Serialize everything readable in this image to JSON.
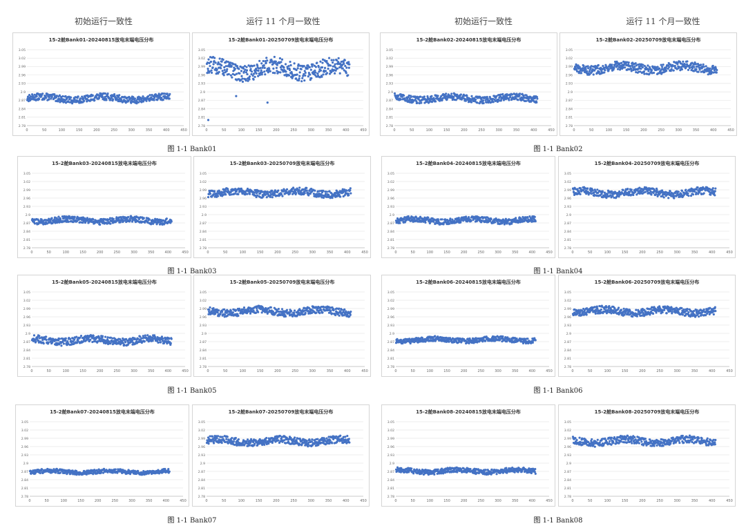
{
  "headers": [
    "初始运行一致性",
    "运行 11 个月一致性",
    "初始运行一致性",
    "运行 11 个月一致性"
  ],
  "captions": [
    "图  1-1 Bank01",
    "图  1-1 Bank02",
    "图  1-1 Bank03",
    "图  1-1 Bank04",
    "图  1-1 Bank05",
    "图  1-1 Bank06",
    "图  1-1 Bank07",
    "图  1-1 Bank08"
  ],
  "colors": {
    "marker": "#4472c4",
    "grid": "#e6e6e6",
    "axis": "#bfbfbf"
  },
  "chart_data": [
    {
      "id": "b01-init",
      "type": "scatter",
      "title": "15-2舱Bank01-20240815放电末端电压分布",
      "xlim": [
        0,
        450
      ],
      "xticks": [
        0,
        50,
        100,
        150,
        200,
        250,
        300,
        350,
        400,
        450
      ],
      "ylim": [
        2.78,
        3.05
      ],
      "yticks": [
        "3.05",
        "3.02",
        "2.99",
        "2.96",
        "2.93",
        "2.9",
        "2.87",
        "2.84",
        "2.81",
        "2.78"
      ],
      "grid": true,
      "n": 410,
      "y_range": [
        2.855,
        2.895
      ]
    },
    {
      "id": "b01-11m",
      "type": "scatter",
      "title": "15-2舱Bank01-20250709放电末端电压分布",
      "xlim": [
        0,
        450
      ],
      "xticks": [
        0,
        50,
        100,
        150,
        200,
        250,
        300,
        350,
        400,
        450
      ],
      "ylim": [
        2.78,
        3.05
      ],
      "yticks": [
        "3.05",
        "3.02",
        "2.99",
        "2.96",
        "2.93",
        "2.9",
        "2.87",
        "2.84",
        "2.81",
        "2.78"
      ],
      "grid": true,
      "n": 410,
      "y_range": [
        2.925,
        3.025
      ],
      "outliers": [
        [
          5,
          2.8
        ],
        [
          85,
          2.885
        ],
        [
          175,
          2.862
        ]
      ]
    },
    {
      "id": "b02-init",
      "type": "scatter",
      "title": "15-2舱Bank02-20240815放电末端电压分布",
      "xlim": [
        0,
        450
      ],
      "xticks": [
        0,
        50,
        100,
        150,
        200,
        250,
        300,
        350,
        400,
        450
      ],
      "ylim": [
        2.78,
        3.05
      ],
      "yticks": [
        "3.05",
        "3.02",
        "2.99",
        "2.96",
        "2.93",
        "2.9",
        "2.87",
        "2.84",
        "2.81",
        "2.78"
      ],
      "grid": true,
      "n": 410,
      "y_range": [
        2.855,
        2.895
      ]
    },
    {
      "id": "b02-11m",
      "type": "scatter",
      "title": "15-2舱Bank02-20250709放电末端电压分布",
      "xlim": [
        0,
        450
      ],
      "xticks": [
        0,
        50,
        100,
        150,
        200,
        250,
        300,
        350,
        400,
        450
      ],
      "ylim": [
        2.78,
        3.05
      ],
      "yticks": [
        "3.05",
        "3.02",
        "2.99",
        "2.96",
        "2.93",
        "2.9",
        "2.87",
        "2.84",
        "2.81",
        "2.78"
      ],
      "grid": true,
      "n": 410,
      "y_range": [
        2.955,
        3.01
      ]
    },
    {
      "id": "b03-init",
      "type": "scatter",
      "title": "15-2舱Bank03-20240815放电末端电压分布",
      "xlim": [
        0,
        450
      ],
      "xticks": [
        0,
        50,
        100,
        150,
        200,
        250,
        300,
        350,
        400,
        450
      ],
      "ylim": [
        2.78,
        3.05
      ],
      "yticks": [
        "3.05",
        "3.02",
        "2.99",
        "2.96",
        "2.93",
        "2.9",
        "2.87",
        "2.84",
        "2.81",
        "2.78"
      ],
      "grid": true,
      "n": 410,
      "y_range": [
        2.86,
        2.895
      ]
    },
    {
      "id": "b03-11m",
      "type": "scatter",
      "title": "15-2舱Bank03-20250709放电末端电压分布",
      "xlim": [
        0,
        450
      ],
      "xticks": [
        0,
        50,
        100,
        150,
        200,
        250,
        300,
        350,
        400,
        450
      ],
      "ylim": [
        2.78,
        3.05
      ],
      "yticks": [
        "3.05",
        "3.02",
        "2.99",
        "2.96",
        "2.93",
        "2.9",
        "2.87",
        "2.84",
        "2.81",
        "2.78"
      ],
      "grid": true,
      "n": 410,
      "y_range": [
        2.955,
        3.0
      ]
    },
    {
      "id": "b04-init",
      "type": "scatter",
      "title": "15-2舱Bank04-20240815放电末端电压分布",
      "xlim": [
        0,
        450
      ],
      "xticks": [
        0,
        50,
        100,
        150,
        200,
        250,
        300,
        350,
        400,
        450
      ],
      "ylim": [
        2.78,
        3.05
      ],
      "yticks": [
        "3.05",
        "3.02",
        "2.99",
        "2.96",
        "2.93",
        "2.9",
        "2.87",
        "2.84",
        "2.81",
        "2.78"
      ],
      "grid": true,
      "n": 410,
      "y_range": [
        2.86,
        2.895
      ]
    },
    {
      "id": "b04-11m",
      "type": "scatter",
      "title": "15-2舱Bank04-20250709放电末端电压分布",
      "xlim": [
        0,
        450
      ],
      "xticks": [
        0,
        50,
        100,
        150,
        200,
        250,
        300,
        350,
        400,
        450
      ],
      "ylim": [
        2.78,
        3.05
      ],
      "yticks": [
        "3.05",
        "3.02",
        "2.99",
        "2.96",
        "2.93",
        "2.9",
        "2.87",
        "2.84",
        "2.81",
        "2.78"
      ],
      "grid": true,
      "n": 410,
      "y_range": [
        2.955,
        3.0
      ]
    },
    {
      "id": "b05-init",
      "type": "scatter",
      "title": "15-2舱Bank05-20240815放电末端电压分布",
      "xlim": [
        0,
        450
      ],
      "xticks": [
        0,
        50,
        100,
        150,
        200,
        250,
        300,
        350,
        400,
        450
      ],
      "ylim": [
        2.78,
        3.05
      ],
      "yticks": [
        "3.05",
        "3.02",
        "2.99",
        "2.96",
        "2.93",
        "2.9",
        "2.87",
        "2.84",
        "2.81",
        "2.78"
      ],
      "grid": true,
      "n": 410,
      "y_range": [
        2.85,
        2.895
      ]
    },
    {
      "id": "b05-11m",
      "type": "scatter",
      "title": "15-2舱Bank05-20250709放电末端电压分布",
      "xlim": [
        0,
        450
      ],
      "xticks": [
        0,
        50,
        100,
        150,
        200,
        250,
        300,
        350,
        400,
        450
      ],
      "ylim": [
        2.78,
        3.05
      ],
      "yticks": [
        "3.05",
        "3.02",
        "2.99",
        "2.96",
        "2.93",
        "2.9",
        "2.87",
        "2.84",
        "2.81",
        "2.78"
      ],
      "grid": true,
      "n": 410,
      "y_range": [
        2.955,
        3.0
      ]
    },
    {
      "id": "b06-init",
      "type": "scatter",
      "title": "15-2舱Bank06-20240815放电末端电压分布",
      "xlim": [
        0,
        450
      ],
      "xticks": [
        0,
        50,
        100,
        150,
        200,
        250,
        300,
        350,
        400,
        450
      ],
      "ylim": [
        2.78,
        3.05
      ],
      "yticks": [
        "3.05",
        "3.02",
        "2.99",
        "2.96",
        "2.93",
        "2.9",
        "2.87",
        "2.84",
        "2.81",
        "2.78"
      ],
      "grid": true,
      "n": 410,
      "y_range": [
        2.86,
        2.89
      ]
    },
    {
      "id": "b06-11m",
      "type": "scatter",
      "title": "15-2舱Bank06-20250709放电末端电压分布",
      "xlim": [
        0,
        450
      ],
      "xticks": [
        0,
        50,
        100,
        150,
        200,
        250,
        300,
        350,
        400,
        450
      ],
      "ylim": [
        2.78,
        3.05
      ],
      "yticks": [
        "3.05",
        "3.02",
        "2.99",
        "2.96",
        "2.93",
        "2.9",
        "2.87",
        "2.84",
        "2.81",
        "2.78"
      ],
      "grid": true,
      "n": 410,
      "y_range": [
        2.955,
        3.0
      ]
    },
    {
      "id": "b07-init",
      "type": "scatter",
      "title": "15-2舱Bank07-20240815放电末端电压分布",
      "xlim": [
        0,
        450
      ],
      "xticks": [
        0,
        50,
        100,
        150,
        200,
        250,
        300,
        350,
        400,
        450
      ],
      "ylim": [
        2.78,
        3.05
      ],
      "yticks": [
        "3.05",
        "3.02",
        "2.99",
        "2.96",
        "2.93",
        "2.9",
        "2.87",
        "2.84",
        "2.81",
        "2.78"
      ],
      "grid": true,
      "n": 410,
      "y_range": [
        2.855,
        2.88
      ]
    },
    {
      "id": "b07-11m",
      "type": "scatter",
      "title": "15-2舱Bank07-20250709放电末端电压分布",
      "xlim": [
        0,
        450
      ],
      "xticks": [
        0,
        50,
        100,
        150,
        200,
        250,
        300,
        350,
        400,
        450
      ],
      "ylim": [
        2.78,
        3.05
      ],
      "yticks": [
        "3.05",
        "3.02",
        "2.99",
        "2.96",
        "2.93",
        "2.9",
        "2.87",
        "2.84",
        "2.81",
        "2.78"
      ],
      "grid": true,
      "n": 410,
      "y_range": [
        2.955,
        3.0
      ]
    },
    {
      "id": "b08-init",
      "type": "scatter",
      "title": "15-2舱Bank08-20240815放电末端电压分布",
      "xlim": [
        0,
        450
      ],
      "xticks": [
        0,
        50,
        100,
        150,
        200,
        250,
        300,
        350,
        400,
        450
      ],
      "ylim": [
        2.78,
        3.05
      ],
      "yticks": [
        "3.05",
        "3.02",
        "2.99",
        "2.96",
        "2.93",
        "2.9",
        "2.87",
        "2.84",
        "2.81",
        "2.78"
      ],
      "grid": true,
      "n": 410,
      "y_range": [
        2.855,
        2.885
      ]
    },
    {
      "id": "b08-11m",
      "type": "scatter",
      "title": "15-2舱Bank08-20250709放电末端电压分布",
      "xlim": [
        0,
        450
      ],
      "xticks": [
        0,
        50,
        100,
        150,
        200,
        250,
        300,
        350,
        400,
        450
      ],
      "ylim": [
        2.78,
        3.05
      ],
      "yticks": [
        "3.05",
        "3.02",
        "2.99",
        "2.96",
        "2.93",
        "2.9",
        "2.87",
        "2.84",
        "2.81",
        "2.78"
      ],
      "grid": true,
      "n": 410,
      "y_range": [
        2.955,
        3.0
      ]
    }
  ]
}
